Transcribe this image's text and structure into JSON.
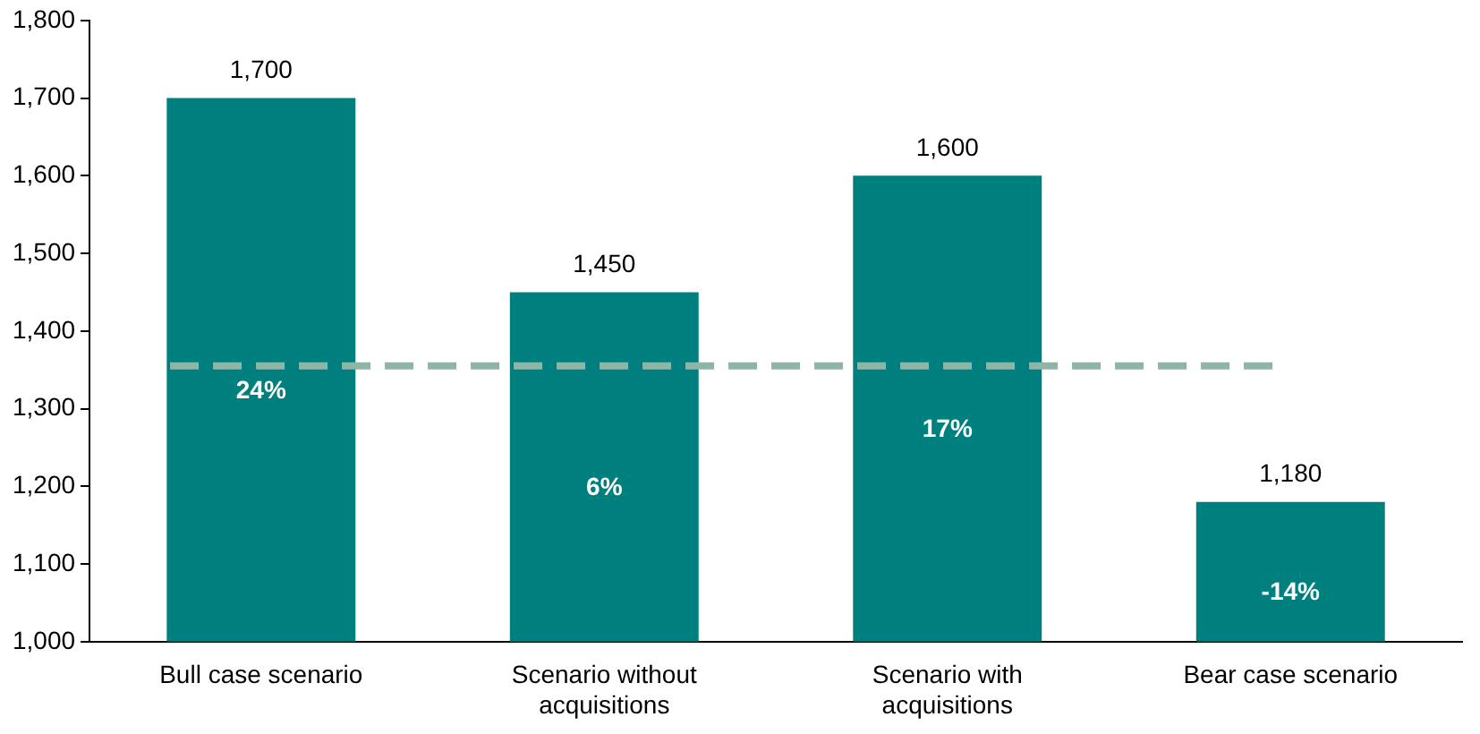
{
  "chart_data": {
    "type": "bar",
    "categories": [
      "Bull case scenario",
      "Scenario without acquisitions",
      "Scenario with acquisitions",
      "Bear case scenario"
    ],
    "values": [
      1700,
      1450,
      1600,
      1180
    ],
    "value_labels": [
      "1,700",
      "1,450",
      "1,600",
      "1,180"
    ],
    "color": "#007f7f",
    "ylim": [
      1000,
      1800
    ],
    "yticks": [
      {
        "value": 1000,
        "label": "1,000"
      },
      {
        "value": 1100,
        "label": "1,100"
      },
      {
        "value": 1200,
        "label": "1,200"
      },
      {
        "value": 1300,
        "label": "1,300"
      },
      {
        "value": 1400,
        "label": "1,400"
      },
      {
        "value": 1500,
        "label": "1,500"
      },
      {
        "value": 1600,
        "label": "1,600"
      },
      {
        "value": 1700,
        "label": "1,700"
      },
      {
        "value": 1800,
        "label": "1,800"
      }
    ],
    "ref_lines": [
      {
        "axis": "y",
        "value": 1355,
        "color": "#8fb5a6",
        "line_style": "dashed"
      }
    ],
    "annotations": [
      "24%",
      "6%",
      "17%",
      "-14%"
    ],
    "grid": false,
    "legend": false
  }
}
